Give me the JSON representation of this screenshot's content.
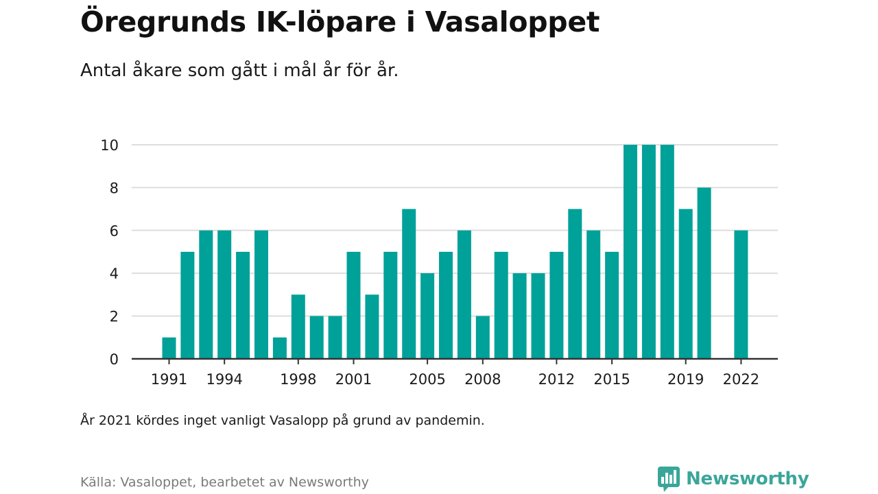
{
  "title": "Öregrunds IK-löpare i Vasaloppet",
  "subtitle": "Antal åkare som gått i mål år för år.",
  "note": "År 2021 kördes inget vanligt Vasalopp på grund av pandemin.",
  "source": "Källa: Vasaloppet, bearbetet av Newsworthy",
  "logo": {
    "text": "Newsworthy",
    "icon": "bar-chart-speech-bubble-icon",
    "color": "#3aa69a"
  },
  "colors": {
    "bar": "#00a199",
    "grid": "#dddddd",
    "axis": "#333333"
  },
  "chart_data": {
    "type": "bar",
    "title": "Öregrunds IK-löpare i Vasaloppet",
    "xlabel": "",
    "ylabel": "",
    "ylim": [
      0,
      10
    ],
    "yticks": [
      0,
      2,
      4,
      6,
      8,
      10
    ],
    "xticks": [
      1991,
      1994,
      1998,
      2001,
      2005,
      2008,
      2012,
      2015,
      2019,
      2022
    ],
    "grid": true,
    "categories": [
      1991,
      1992,
      1993,
      1994,
      1995,
      1996,
      1997,
      1998,
      1999,
      2000,
      2001,
      2002,
      2003,
      2004,
      2005,
      2006,
      2007,
      2008,
      2009,
      2010,
      2011,
      2012,
      2013,
      2014,
      2015,
      2016,
      2017,
      2018,
      2019,
      2020,
      2021,
      2022
    ],
    "values": [
      1,
      5,
      6,
      6,
      5,
      6,
      1,
      3,
      2,
      2,
      5,
      3,
      5,
      7,
      4,
      5,
      6,
      2,
      5,
      4,
      4,
      5,
      7,
      6,
      5,
      10,
      10,
      10,
      7,
      8,
      null,
      6
    ]
  }
}
